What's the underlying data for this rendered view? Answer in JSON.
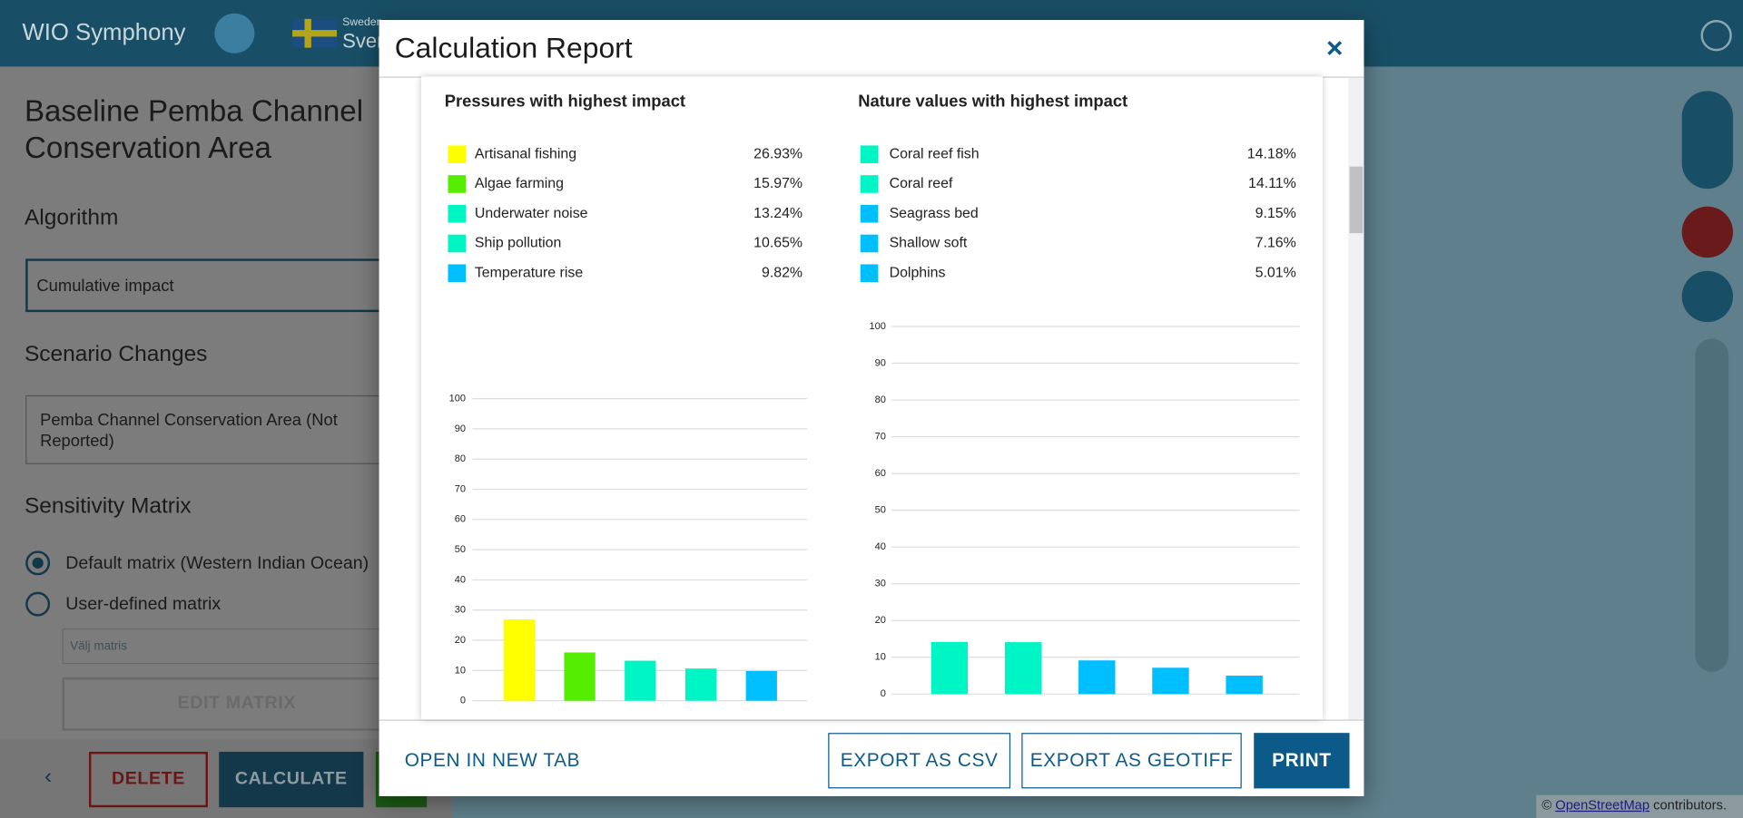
{
  "header": {
    "app_title": "WIO Symphony",
    "country": "Sweden",
    "country_short": "Sverige"
  },
  "sidebar": {
    "scenario_title": "Baseline Pemba Channel Conservation Area",
    "algorithm_heading": "Algorithm",
    "algorithm_value": "Cumulative impact",
    "scenario_changes_heading": "Scenario Changes",
    "scenario_change": "Pemba Channel Conservation Area (Not Reported)",
    "sensitivity_heading": "Sensitivity Matrix",
    "matrix_options": [
      "Default matrix (Western Indian Ocean)",
      "User-defined matrix"
    ],
    "matrix_placeholder": "Välj matris",
    "edit_matrix": "EDIT MATRIX",
    "delete": "DELETE",
    "calculate": "CALCULATE"
  },
  "modal": {
    "title": "Calculation Report",
    "buttons": [
      "OPEN IN NEW TAB",
      "EXPORT AS CSV",
      "EXPORT AS GEOTIFF",
      "PRINT"
    ]
  },
  "map": {
    "attribution_prefix": "©",
    "attribution_link": "OpenStreetMap",
    "attribution_suffix": "contributors."
  },
  "chart_data": [
    {
      "type": "bar",
      "title": "Pressures with highest impact",
      "categories": [
        "Artisanal fishing",
        "Algae farming",
        "Underwater noise",
        "Ship pollution",
        "Temperature rise"
      ],
      "values": [
        26.93,
        15.97,
        13.24,
        10.65,
        9.82
      ],
      "value_labels": [
        "26.93%",
        "15.97%",
        "13.24%",
        "10.65%",
        "9.82%"
      ],
      "colors": [
        "#ffff00",
        "#55ee00",
        "#00f5c4",
        "#00f5c4",
        "#00bfff"
      ],
      "ylim": [
        0,
        100
      ],
      "yticks": [
        0,
        10,
        20,
        30,
        40,
        50,
        60,
        70,
        80,
        90,
        100
      ],
      "grid": true
    },
    {
      "type": "bar",
      "title": "Nature values with highest impact",
      "categories": [
        "Coral reef fish",
        "Coral reef",
        "Seagrass bed",
        "Shallow soft",
        "Dolphins"
      ],
      "values": [
        14.18,
        14.11,
        9.15,
        7.16,
        5.01
      ],
      "value_labels": [
        "14.18%",
        "14.11%",
        "9.15%",
        "7.16%",
        "5.01%"
      ],
      "colors": [
        "#00f5c4",
        "#00f5c4",
        "#00bfff",
        "#00bfff",
        "#00bfff"
      ],
      "ylim": [
        0,
        100
      ],
      "yticks": [
        0,
        10,
        20,
        30,
        40,
        50,
        60,
        70,
        80,
        90,
        100
      ],
      "grid": true
    }
  ]
}
